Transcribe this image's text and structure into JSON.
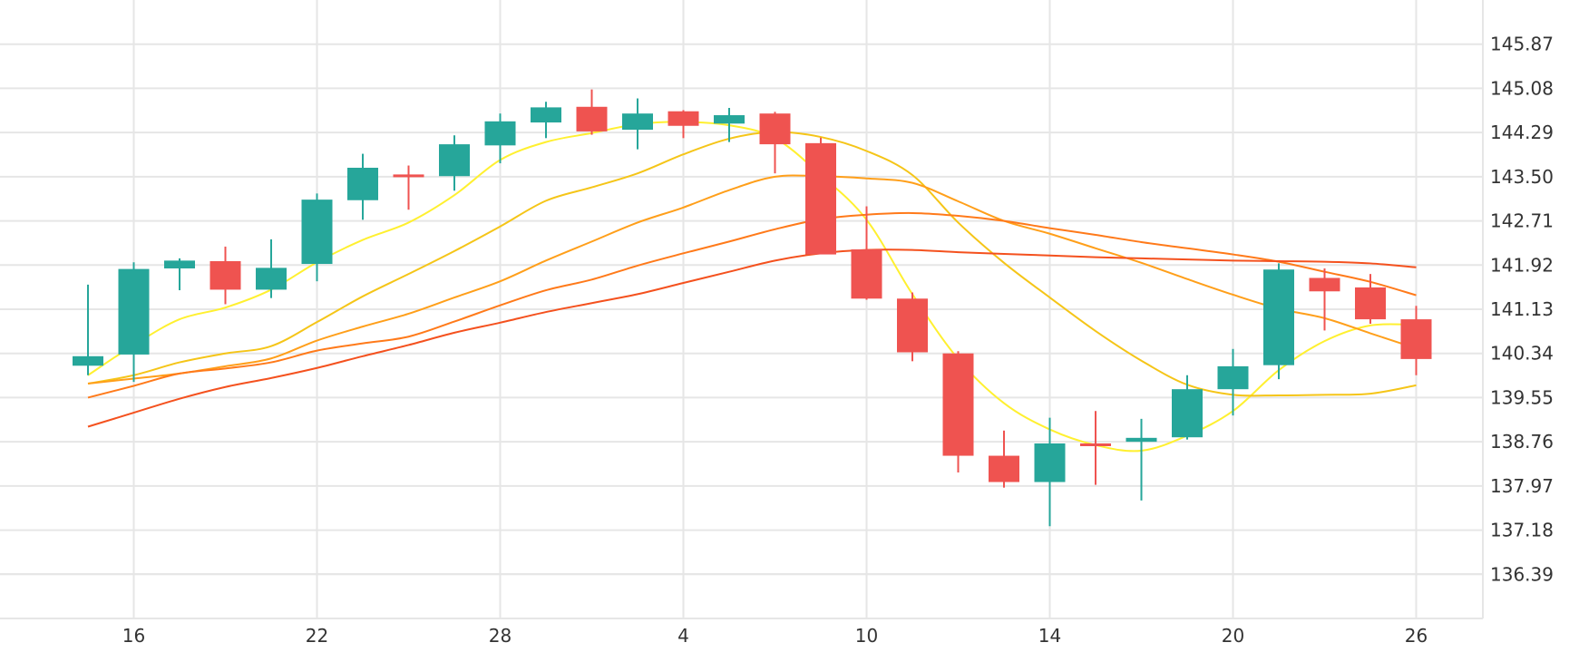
{
  "chart_data": {
    "type": "candlestick",
    "title": "",
    "xlabel": "",
    "ylabel": "",
    "grid": true,
    "legend": "none",
    "ylim": [
      135.6,
      146.66
    ],
    "x_ticks": [
      {
        "label": "16",
        "index": 1
      },
      {
        "label": "22",
        "index": 5
      },
      {
        "label": "28",
        "index": 9
      },
      {
        "label": "4",
        "index": 13
      },
      {
        "label": "10",
        "index": 17
      },
      {
        "label": "14",
        "index": 21
      },
      {
        "label": "20",
        "index": 25
      },
      {
        "label": "26",
        "index": 29
      }
    ],
    "y_ticks": [
      136.39,
      137.18,
      137.97,
      138.76,
      139.55,
      140.34,
      141.13,
      141.92,
      142.71,
      143.5,
      144.29,
      145.08,
      145.87
    ],
    "y_tick_labels": [
      "136.39",
      "137.18",
      "137.97",
      "138.76",
      "139.55",
      "140.34",
      "141.13",
      "141.92",
      "142.71",
      "143.50",
      "144.29",
      "145.08",
      "145.87"
    ],
    "colors": {
      "up": "#26a69a",
      "down": "#ef5350",
      "grid": "#e6e6e6",
      "axis_text": "#333333",
      "ma": [
        "#fff030",
        "#f5c518",
        "#ff9f1a",
        "#ff7a1a",
        "#f4511e"
      ]
    },
    "candles": [
      {
        "open": 140.12,
        "high": 141.57,
        "low": 139.95,
        "close": 140.29
      },
      {
        "open": 140.32,
        "high": 141.97,
        "low": 139.83,
        "close": 141.85
      },
      {
        "open": 141.86,
        "high": 142.04,
        "low": 141.47,
        "close": 142.0
      },
      {
        "open": 141.99,
        "high": 142.25,
        "low": 141.22,
        "close": 141.48
      },
      {
        "open": 141.48,
        "high": 142.38,
        "low": 141.33,
        "close": 141.87
      },
      {
        "open": 141.94,
        "high": 143.2,
        "low": 141.63,
        "close": 143.09
      },
      {
        "open": 143.08,
        "high": 143.91,
        "low": 142.73,
        "close": 143.66
      },
      {
        "open": 143.54,
        "high": 143.7,
        "low": 142.91,
        "close": 143.51
      },
      {
        "open": 143.51,
        "high": 144.24,
        "low": 143.25,
        "close": 144.08
      },
      {
        "open": 144.06,
        "high": 144.63,
        "low": 143.74,
        "close": 144.49
      },
      {
        "open": 144.47,
        "high": 144.84,
        "low": 144.19,
        "close": 144.74
      },
      {
        "open": 144.75,
        "high": 145.06,
        "low": 144.25,
        "close": 144.31
      },
      {
        "open": 144.34,
        "high": 144.9,
        "low": 143.99,
        "close": 144.63
      },
      {
        "open": 144.67,
        "high": 144.69,
        "low": 144.19,
        "close": 144.41
      },
      {
        "open": 144.45,
        "high": 144.73,
        "low": 144.12,
        "close": 144.6
      },
      {
        "open": 144.63,
        "high": 144.66,
        "low": 143.56,
        "close": 144.08
      },
      {
        "open": 144.1,
        "high": 144.2,
        "low": 142.12,
        "close": 142.11
      },
      {
        "open": 142.2,
        "high": 142.97,
        "low": 141.3,
        "close": 141.32
      },
      {
        "open": 141.32,
        "high": 141.43,
        "low": 140.2,
        "close": 140.36
      },
      {
        "open": 140.34,
        "high": 140.38,
        "low": 138.21,
        "close": 138.51
      },
      {
        "open": 138.51,
        "high": 138.96,
        "low": 137.94,
        "close": 138.04
      },
      {
        "open": 138.04,
        "high": 139.19,
        "low": 137.25,
        "close": 138.73
      },
      {
        "open": 138.73,
        "high": 139.31,
        "low": 137.99,
        "close": 138.71
      },
      {
        "open": 138.76,
        "high": 139.17,
        "low": 137.71,
        "close": 138.83
      },
      {
        "open": 138.84,
        "high": 139.95,
        "low": 138.8,
        "close": 139.7
      },
      {
        "open": 139.7,
        "high": 140.42,
        "low": 139.23,
        "close": 140.11
      },
      {
        "open": 140.13,
        "high": 141.95,
        "low": 139.88,
        "close": 141.84
      },
      {
        "open": 141.69,
        "high": 141.86,
        "low": 140.75,
        "close": 141.45
      },
      {
        "open": 141.52,
        "high": 141.76,
        "low": 140.87,
        "close": 140.95
      },
      {
        "open": 140.95,
        "high": 141.19,
        "low": 139.95,
        "close": 140.24
      }
    ],
    "moving_averages": [
      {
        "color": "#fff030",
        "points": [
          [
            0,
            139.95
          ],
          [
            1,
            140.49
          ],
          [
            2,
            140.95
          ],
          [
            3,
            141.16
          ],
          [
            4,
            141.48
          ],
          [
            5,
            141.97
          ],
          [
            6,
            142.37
          ],
          [
            7,
            142.68
          ],
          [
            8,
            143.17
          ],
          [
            9,
            143.8
          ],
          [
            10,
            144.12
          ],
          [
            11,
            144.28
          ],
          [
            12,
            144.44
          ],
          [
            13,
            144.48
          ],
          [
            14,
            144.42
          ],
          [
            15,
            144.19
          ],
          [
            16,
            143.53
          ],
          [
            17,
            142.73
          ],
          [
            18,
            141.4
          ],
          [
            19,
            140.24
          ],
          [
            20,
            139.45
          ],
          [
            21,
            138.98
          ],
          [
            22,
            138.7
          ],
          [
            23,
            138.6
          ],
          [
            24,
            138.87
          ],
          [
            25,
            139.31
          ],
          [
            26,
            140.04
          ],
          [
            27,
            140.56
          ],
          [
            28,
            140.84
          ],
          [
            29,
            140.85
          ]
        ]
      },
      {
        "color": "#f5c518",
        "points": [
          [
            0,
            139.8
          ],
          [
            1,
            139.95
          ],
          [
            2,
            140.18
          ],
          [
            3,
            140.34
          ],
          [
            4,
            140.47
          ],
          [
            5,
            140.9
          ],
          [
            6,
            141.36
          ],
          [
            7,
            141.76
          ],
          [
            8,
            142.17
          ],
          [
            9,
            142.61
          ],
          [
            10,
            143.07
          ],
          [
            11,
            143.31
          ],
          [
            12,
            143.56
          ],
          [
            13,
            143.9
          ],
          [
            14,
            144.18
          ],
          [
            15,
            144.3
          ],
          [
            16,
            144.21
          ],
          [
            17,
            143.96
          ],
          [
            18,
            143.53
          ],
          [
            19,
            142.68
          ],
          [
            20,
            141.96
          ],
          [
            21,
            141.34
          ],
          [
            22,
            140.74
          ],
          [
            23,
            140.21
          ],
          [
            24,
            139.78
          ],
          [
            25,
            139.6
          ],
          [
            26,
            139.59
          ],
          [
            27,
            139.6
          ],
          [
            28,
            139.62
          ],
          [
            29,
            139.77
          ]
        ]
      },
      {
        "color": "#ff9f1a",
        "points": [
          [
            0,
            139.8
          ],
          [
            1,
            139.89
          ],
          [
            2,
            139.98
          ],
          [
            3,
            140.11
          ],
          [
            4,
            140.25
          ],
          [
            5,
            140.57
          ],
          [
            6,
            140.82
          ],
          [
            7,
            141.05
          ],
          [
            8,
            141.34
          ],
          [
            9,
            141.63
          ],
          [
            10,
            142.0
          ],
          [
            11,
            142.34
          ],
          [
            12,
            142.68
          ],
          [
            13,
            142.95
          ],
          [
            14,
            143.26
          ],
          [
            15,
            143.5
          ],
          [
            16,
            143.51
          ],
          [
            17,
            143.47
          ],
          [
            18,
            143.39
          ],
          [
            19,
            143.06
          ],
          [
            20,
            142.71
          ],
          [
            21,
            142.48
          ],
          [
            22,
            142.22
          ],
          [
            23,
            141.96
          ],
          [
            24,
            141.67
          ],
          [
            25,
            141.39
          ],
          [
            26,
            141.14
          ],
          [
            27,
            140.97
          ],
          [
            28,
            140.7
          ],
          [
            29,
            140.43
          ]
        ]
      },
      {
        "color": "#ff7a1a",
        "points": [
          [
            0,
            139.55
          ],
          [
            1,
            139.76
          ],
          [
            2,
            139.98
          ],
          [
            3,
            140.07
          ],
          [
            4,
            140.18
          ],
          [
            5,
            140.39
          ],
          [
            6,
            140.52
          ],
          [
            7,
            140.64
          ],
          [
            8,
            140.91
          ],
          [
            9,
            141.2
          ],
          [
            10,
            141.47
          ],
          [
            11,
            141.66
          ],
          [
            12,
            141.91
          ],
          [
            13,
            142.13
          ],
          [
            14,
            142.34
          ],
          [
            15,
            142.56
          ],
          [
            16,
            142.74
          ],
          [
            17,
            142.82
          ],
          [
            18,
            142.85
          ],
          [
            19,
            142.8
          ],
          [
            20,
            142.71
          ],
          [
            21,
            142.58
          ],
          [
            22,
            142.46
          ],
          [
            23,
            142.33
          ],
          [
            24,
            142.22
          ],
          [
            25,
            142.11
          ],
          [
            26,
            141.98
          ],
          [
            27,
            141.8
          ],
          [
            28,
            141.62
          ],
          [
            29,
            141.38
          ]
        ]
      },
      {
        "color": "#f4511e",
        "points": [
          [
            0,
            139.03
          ],
          [
            1,
            139.28
          ],
          [
            2,
            139.53
          ],
          [
            3,
            139.74
          ],
          [
            4,
            139.9
          ],
          [
            5,
            140.08
          ],
          [
            6,
            140.29
          ],
          [
            7,
            140.49
          ],
          [
            8,
            140.71
          ],
          [
            9,
            140.89
          ],
          [
            10,
            141.08
          ],
          [
            11,
            141.24
          ],
          [
            12,
            141.4
          ],
          [
            13,
            141.6
          ],
          [
            14,
            141.8
          ],
          [
            15,
            142.0
          ],
          [
            16,
            142.13
          ],
          [
            17,
            142.19
          ],
          [
            18,
            142.19
          ],
          [
            19,
            142.15
          ],
          [
            20,
            142.12
          ],
          [
            21,
            142.09
          ],
          [
            22,
            142.06
          ],
          [
            23,
            142.04
          ],
          [
            24,
            142.02
          ],
          [
            25,
            142.0
          ],
          [
            26,
            141.99
          ],
          [
            27,
            141.98
          ],
          [
            28,
            141.95
          ],
          [
            29,
            141.88
          ]
        ]
      }
    ]
  }
}
